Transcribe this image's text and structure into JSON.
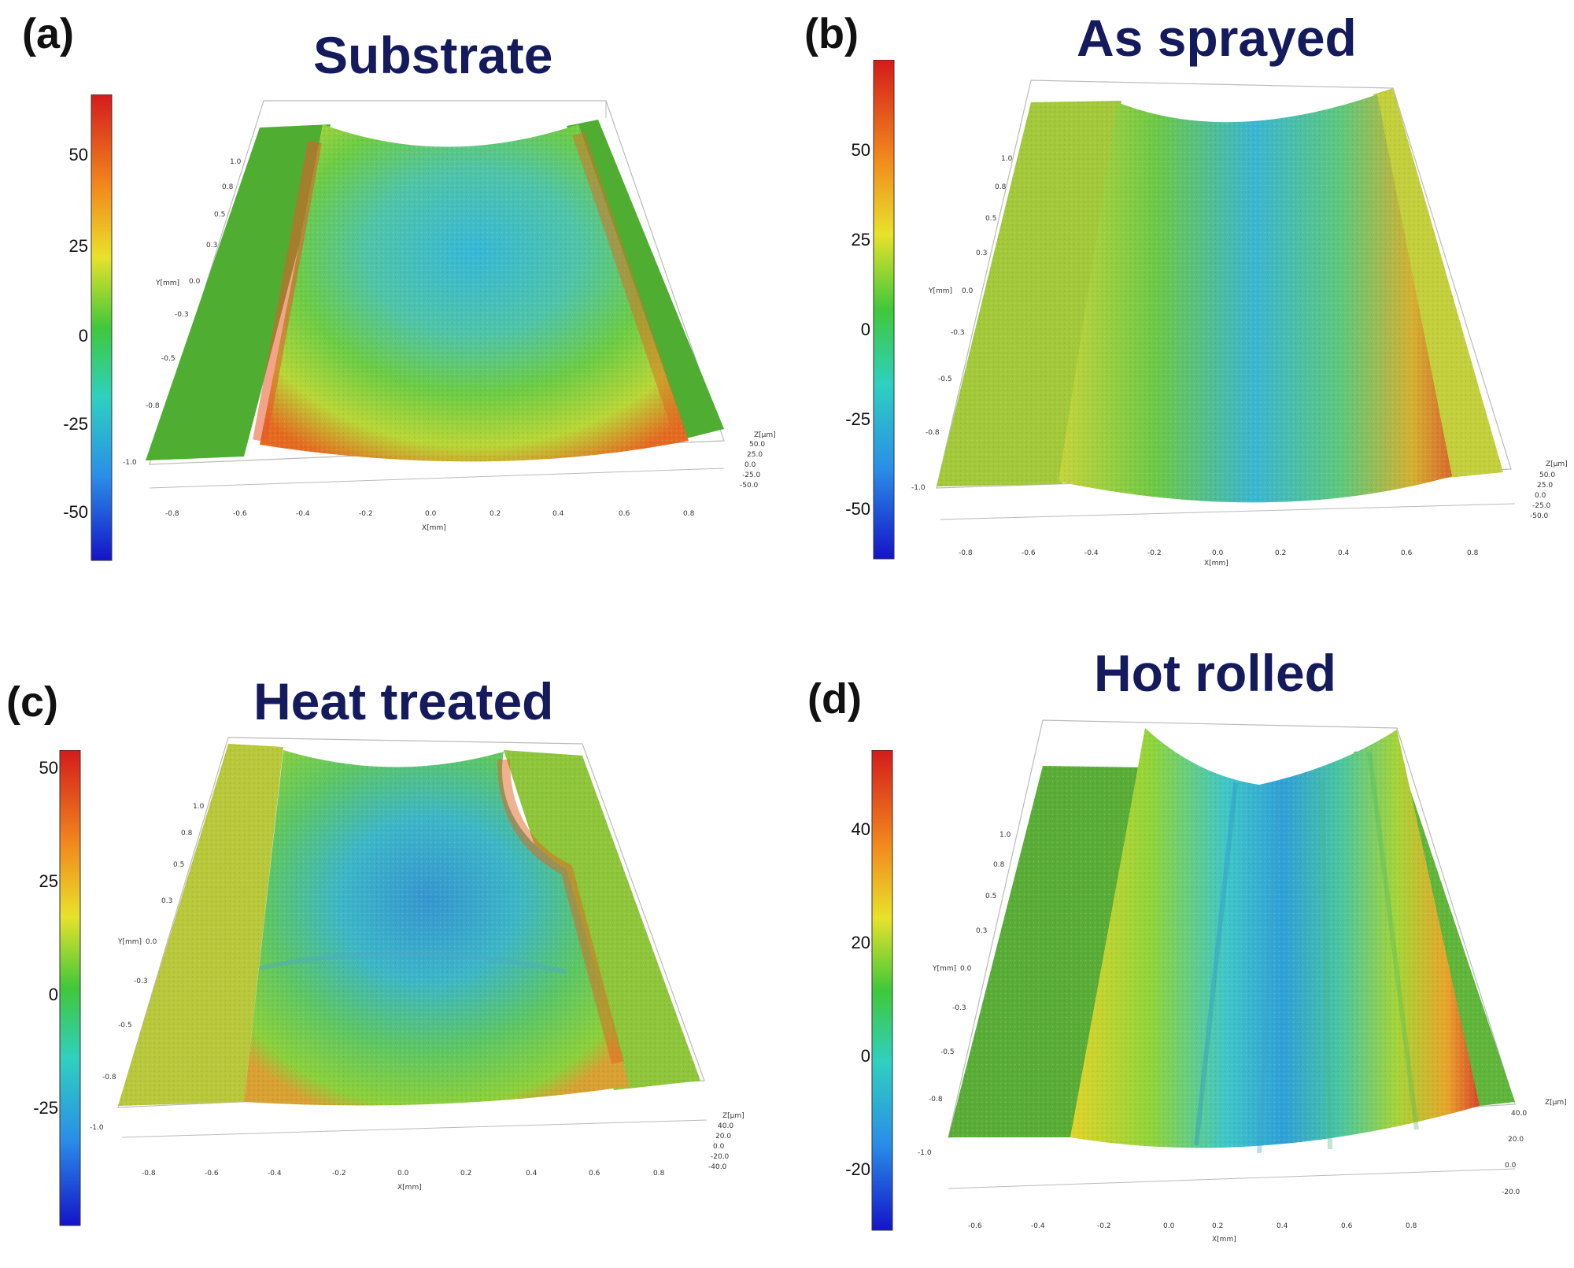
{
  "panels": [
    {
      "id": "a",
      "letter": "(a)",
      "title": "Substrate",
      "colorbar": [
        "50",
        "25",
        "0",
        "-25",
        "-50"
      ],
      "y_ticks": [
        "1.0",
        "0.8",
        "0.5",
        "0.3",
        "0.0",
        "-0.3",
        "-0.5",
        "-0.8",
        "-1.0"
      ],
      "x_ticks": [
        "-0.8",
        "-0.6",
        "-0.4",
        "-0.2",
        "0.0",
        "0.2",
        "0.4",
        "0.6",
        "0.8"
      ],
      "z_ticks": [
        "50.0",
        "25.0",
        "0.0",
        "-25.0",
        "-50.0"
      ],
      "y_label": "Y[mm]",
      "x_label": "X[mm]",
      "z_label": "Z[µm]"
    },
    {
      "id": "b",
      "letter": "(b)",
      "title": "As sprayed",
      "colorbar": [
        "50",
        "25",
        "0",
        "-25",
        "-50"
      ],
      "y_ticks": [
        "1.0",
        "0.8",
        "0.5",
        "0.3",
        "0.0",
        "-0.3",
        "-0.5",
        "-0.8",
        "-1.0"
      ],
      "x_ticks": [
        "-0.8",
        "-0.6",
        "-0.4",
        "-0.2",
        "0.0",
        "0.2",
        "0.4",
        "0.6",
        "0.8"
      ],
      "z_ticks": [
        "50.0",
        "25.0",
        "0.0",
        "-25.0",
        "-50.0"
      ],
      "y_label": "Y[mm]",
      "x_label": "X[mm]",
      "z_label": "Z[µm]"
    },
    {
      "id": "c",
      "letter": "(c)",
      "title": "Heat treated",
      "colorbar": [
        "50",
        "25",
        "0",
        "-25"
      ],
      "y_ticks": [
        "1.0",
        "0.8",
        "0.5",
        "0.3",
        "0.0",
        "-0.3",
        "-0.5",
        "-0.8",
        "-1.0"
      ],
      "x_ticks": [
        "-0.8",
        "-0.6",
        "-0.4",
        "-0.2",
        "0.0",
        "0.2",
        "0.4",
        "0.6",
        "0.8"
      ],
      "z_ticks": [
        "40.0",
        "20.0",
        "0.0",
        "-20.0",
        "-40.0"
      ],
      "y_label": "Y[mm]",
      "x_label": "X[mm]",
      "z_label": "Z[µm]"
    },
    {
      "id": "d",
      "letter": "(d)",
      "title": "Hot rolled",
      "colorbar": [
        "40",
        "20",
        "0",
        "-20"
      ],
      "y_ticks": [
        "1.0",
        "0.8",
        "0.5",
        "0.3",
        "0.0",
        "-0.3",
        "-0.5",
        "-0.8",
        "-1.0"
      ],
      "x_ticks": [
        "-0.6",
        "-0.4",
        "-0.2",
        "0.0",
        "0.2",
        "0.4",
        "0.6",
        "0.8"
      ],
      "z_ticks": [
        "40.0",
        "20.0",
        "0.0",
        "-20.0"
      ],
      "y_label": "Y[mm]",
      "x_label": "X[mm]",
      "z_label": "Z[µm]"
    }
  ],
  "colors": {
    "title": "#141a5c",
    "flat": "#4fae32",
    "high": "#e0531c",
    "mid": "#d9d43a",
    "low": "#1c8fd9"
  }
}
